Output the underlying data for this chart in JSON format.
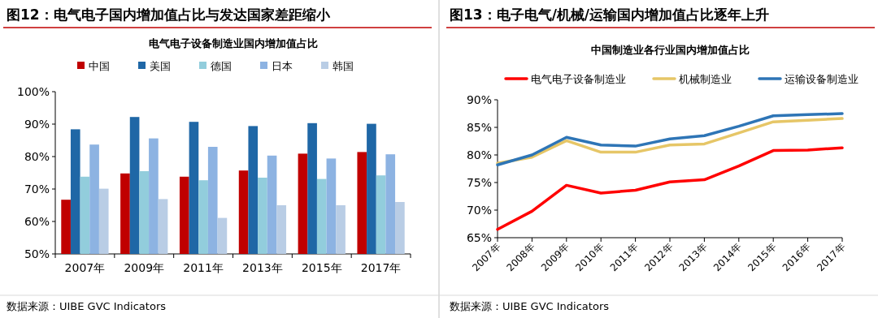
{
  "chart_data": [
    {
      "type": "bar",
      "title": "图12：电气电子国内增加值占比与发达国家差距缩小",
      "subtitle": "电气电子设备制造业国内增加值占比",
      "categories": [
        "2007年",
        "2009年",
        "2011年",
        "2013年",
        "2015年",
        "2017年"
      ],
      "series": [
        {
          "name": "中国",
          "color": "#c00000",
          "values": [
            66.7,
            74.8,
            73.8,
            75.7,
            80.9,
            81.4
          ]
        },
        {
          "name": "美国",
          "color": "#1f67a6",
          "values": [
            88.4,
            92.2,
            90.7,
            89.4,
            90.3,
            90.1
          ]
        },
        {
          "name": "德国",
          "color": "#92cddc",
          "values": [
            73.8,
            75.5,
            72.7,
            73.5,
            73.1,
            74.2
          ]
        },
        {
          "name": "日本",
          "color": "#8db3e2",
          "values": [
            83.7,
            85.6,
            83.0,
            80.3,
            79.4,
            80.7
          ]
        },
        {
          "name": "韩国",
          "color": "#b9cde5",
          "values": [
            70.1,
            66.9,
            61.1,
            65.0,
            65.0,
            66.0
          ]
        }
      ],
      "ylim": [
        50,
        100
      ],
      "yticks": [
        {
          "value": 50,
          "label": "50%"
        },
        {
          "value": 60,
          "label": "60%"
        },
        {
          "value": 70,
          "label": "70%"
        },
        {
          "value": 80,
          "label": "80%"
        },
        {
          "value": 90,
          "label": "90%"
        },
        {
          "value": 100,
          "label": "100%"
        }
      ],
      "legend": "top",
      "grid": false,
      "annotations": [
        "数据来源：UIBE GVC Indicators"
      ]
    },
    {
      "type": "line",
      "title": "图13：电子电气/机械/运输国内增加值占比逐年上升",
      "subtitle": "中国制造业各行业国内增加值占比",
      "categories": [
        "2007年",
        "2008年",
        "2009年",
        "2010年",
        "2011年",
        "2012年",
        "2013年",
        "2014年",
        "2015年",
        "2016年",
        "2017年"
      ],
      "series": [
        {
          "name": "电气电子设备制造业",
          "color": "#ff0000",
          "values": [
            66.5,
            69.8,
            74.5,
            73.1,
            73.6,
            75.1,
            75.5,
            78.0,
            80.8,
            80.9,
            81.3
          ]
        },
        {
          "name": "机械制造业",
          "color": "#e6c667",
          "values": [
            78.5,
            79.6,
            82.6,
            80.5,
            80.5,
            81.8,
            82.0,
            84.0,
            86.0,
            86.3,
            86.6
          ]
        },
        {
          "name": "运输设备制造业",
          "color": "#2e75b6",
          "values": [
            78.2,
            80.0,
            83.2,
            81.8,
            81.6,
            82.9,
            83.5,
            85.2,
            87.1,
            87.3,
            87.5
          ]
        }
      ],
      "ylim": [
        65,
        90
      ],
      "yticks": [
        {
          "value": 65,
          "label": "65%"
        },
        {
          "value": 70,
          "label": "70%"
        },
        {
          "value": 75,
          "label": "75%"
        },
        {
          "value": 80,
          "label": "80%"
        },
        {
          "value": 85,
          "label": "85%"
        },
        {
          "value": 90,
          "label": "90%"
        }
      ],
      "legend": "top",
      "grid": false,
      "marker": "none",
      "line_style": "solid",
      "annotations": [
        "数据来源：UIBE GVC Indicators"
      ]
    }
  ]
}
